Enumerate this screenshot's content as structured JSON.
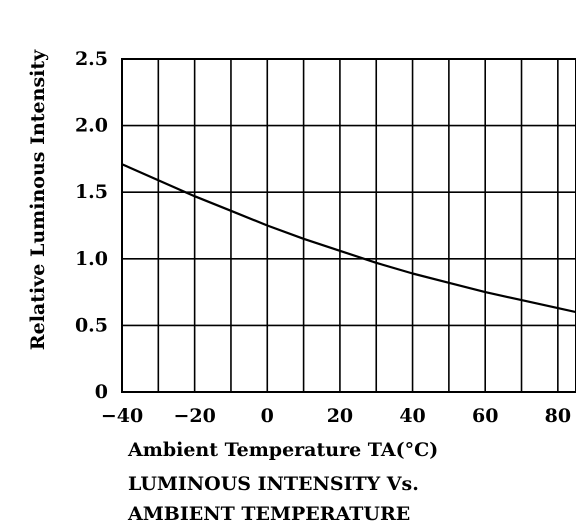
{
  "chart_data": {
    "type": "line",
    "title": "LUMINOUS INTENSITY Vs. AMBIENT TEMPERATURE",
    "title_lines": [
      "LUMINOUS INTENSITY Vs.",
      "AMBIENT TEMPERATURE"
    ],
    "xlabel": "Ambient Temperature TA(°C)",
    "ylabel": "Relative Luminous Intensity",
    "xlim": [
      -40,
      85
    ],
    "ylim": [
      0,
      2.5
    ],
    "x_ticks": [
      -40,
      -20,
      0,
      20,
      40,
      60,
      80
    ],
    "x_tick_labels": [
      "−40",
      "−20",
      "0",
      "20",
      "40",
      "60",
      "80"
    ],
    "y_ticks": [
      0,
      0.5,
      1.0,
      1.5,
      2.0,
      2.5
    ],
    "y_tick_labels": [
      "0",
      "0.5",
      "1.0",
      "1.5",
      "2.0",
      "2.5"
    ],
    "x_grid_step": 10,
    "grid": true,
    "series": [
      {
        "x": [
          -40,
          -30,
          -20,
          -10,
          0,
          10,
          20,
          30,
          40,
          50,
          60,
          70,
          80,
          85
        ],
        "values": [
          1.71,
          1.59,
          1.47,
          1.36,
          1.25,
          1.15,
          1.06,
          0.97,
          0.89,
          0.82,
          0.75,
          0.69,
          0.63,
          0.6
        ]
      }
    ]
  }
}
